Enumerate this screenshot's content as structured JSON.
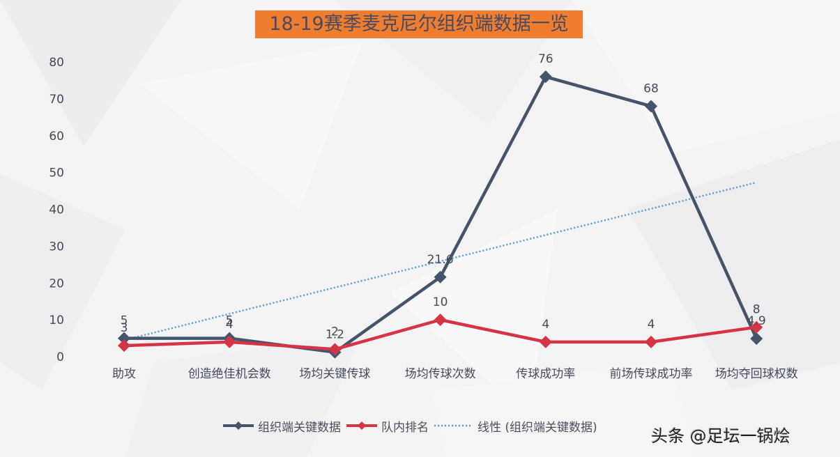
{
  "title": "18-19赛季麦克尼尔组织端数据一览",
  "watermark": "头条 @足坛一锅烩",
  "colors": {
    "title_bg": "#ef7d2d",
    "series_primary": "#44546a",
    "series_rank": "#d63445",
    "trendline": "#5b9bd5"
  },
  "legend": {
    "items": [
      {
        "label": "组织端关键数据",
        "style": "line-diamond",
        "color": "#44546a"
      },
      {
        "label": "队内排名",
        "style": "line-diamond",
        "color": "#d63445"
      },
      {
        "label": "线性 (组织端关键数据)",
        "style": "dotted",
        "color": "#5b9bd5"
      }
    ]
  },
  "chart_data": {
    "type": "line",
    "title": "18-19赛季麦克尼尔组织端数据一览",
    "categories": [
      "助攻",
      "创造绝佳机会数",
      "场均关键传球",
      "场均传球次数",
      "传球成功率",
      "前场传球成功率",
      "场均夺回球权数"
    ],
    "series": [
      {
        "name": "组织端关键数据",
        "values": [
          5,
          5,
          1.2,
          21.6,
          76,
          68,
          4.9
        ],
        "labels": [
          "5",
          "5",
          "1.2",
          "21.6",
          "76",
          "68",
          "4.9"
        ]
      },
      {
        "name": "队内排名",
        "values": [
          3,
          4,
          2,
          10,
          4,
          4,
          8
        ],
        "labels": [
          "3",
          "4",
          "2",
          "10",
          "4",
          "4",
          "8"
        ]
      }
    ],
    "trendline": {
      "name": "线性 (组织端关键数据)",
      "type": "linear",
      "of": "组织端关键数据",
      "start": 4.5,
      "end": 47.3
    },
    "yticks": [
      0,
      10,
      20,
      30,
      40,
      50,
      60,
      70,
      80
    ],
    "ylim": [
      0,
      80
    ],
    "xlabel": "",
    "ylabel": "",
    "grid": false,
    "legend_position": "bottom"
  }
}
